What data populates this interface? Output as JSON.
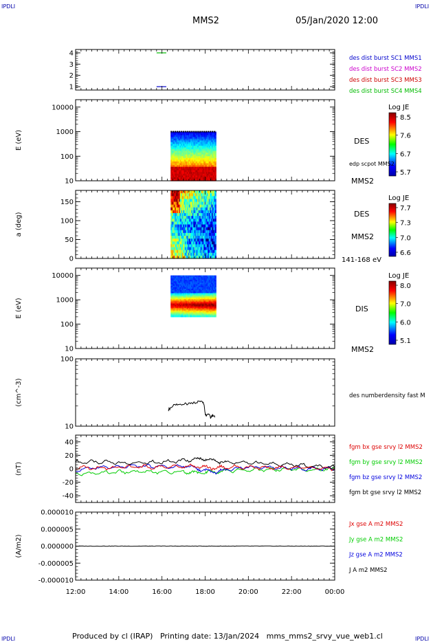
{
  "header": {
    "corner_tl": "IPDLI",
    "corner_tr": "IPDLI",
    "spacecraft": "MMS2",
    "datetime": "05/Jan/2020 12:00"
  },
  "footer": {
    "text": "Produced by cl (IRAP)   Printing date: 13/Jan/2024   mms_mms2_srvy_vue_web1.cl",
    "corner_bl": "IPDLI",
    "corner_br": "IPDLI"
  },
  "colors": {
    "mms1": "#0000cc",
    "mms2": "#cc00cc",
    "mms3": "#cc0000",
    "mms4": "#00bb00",
    "bx": "#dd0000",
    "by": "#00cc00",
    "bz": "#0000dd",
    "bt": "#000000"
  },
  "chart_data": {
    "type": "multi-panel",
    "x_axis": {
      "ticks": [
        "12:00",
        "14:00",
        "16:00",
        "18:00",
        "20:00",
        "22:00",
        "00:00"
      ],
      "range_hours": [
        12,
        24
      ]
    },
    "panels": [
      {
        "id": "burst",
        "type": "line",
        "ylabel": "",
        "yticks": [
          "1",
          "2",
          "3",
          "4"
        ],
        "ylim": [
          0.7,
          4.3
        ],
        "labels": [
          {
            "text": "des dist burst SC1 MMS1",
            "color": "#0000cc"
          },
          {
            "text": "des dist burst SC2 MMS2",
            "color": "#cc00cc"
          },
          {
            "text": "des dist burst SC3 MMS3",
            "color": "#cc0000"
          },
          {
            "text": "des dist burst SC4 MMS4",
            "color": "#00bb00"
          }
        ],
        "segments": [
          {
            "sc": 1,
            "y": 1,
            "x_start": 15.75,
            "x_end": 16.2,
            "color": "#0000cc"
          },
          {
            "sc": 4,
            "y": 4,
            "x_start": 15.75,
            "x_end": 16.2,
            "color": "#00bb00"
          }
        ]
      },
      {
        "id": "des_energy",
        "type": "heatmap",
        "ylabel": "E (eV)",
        "yscale": "log",
        "yticks": [
          "10",
          "100",
          "1000",
          "10000"
        ],
        "ylim": [
          10,
          20000
        ],
        "x_start": 16.4,
        "x_end": 18.5,
        "y_range": [
          10,
          1000
        ],
        "label1": "DES",
        "label2": "edp scpot MMS2",
        "label3": "MMS2",
        "colorbar": {
          "title": "Log JE",
          "ticks": [
            "8.5",
            "7.6",
            "6.7",
            "5.7"
          ],
          "range": [
            5.7,
            8.5
          ]
        }
      },
      {
        "id": "des_pitch",
        "type": "heatmap",
        "ylabel": "a (deg)",
        "yscale": "linear",
        "yticks": [
          "0",
          "50",
          "100",
          "150"
        ],
        "ylim": [
          0,
          180
        ],
        "x_start": 16.4,
        "x_end": 18.5,
        "label1": "DES",
        "label2": "MMS2",
        "label3": "141-168 eV",
        "colorbar": {
          "title": "Log JE",
          "ticks": [
            "7.7",
            "7.3",
            "7.0",
            "6.6"
          ],
          "range": [
            6.6,
            7.7
          ]
        }
      },
      {
        "id": "dis_energy",
        "type": "heatmap",
        "ylabel": "E (eV)",
        "yscale": "log",
        "yticks": [
          "10",
          "100",
          "1000",
          "10000"
        ],
        "ylim": [
          10,
          20000
        ],
        "x_start": 16.4,
        "x_end": 18.5,
        "y_range": [
          200,
          10000
        ],
        "label1": "DIS",
        "label2": "MMS2",
        "colorbar": {
          "title": "Log JE",
          "ticks": [
            "8.0",
            "7.0",
            "6.0",
            "5.1"
          ],
          "range": [
            5.1,
            8.0
          ]
        }
      },
      {
        "id": "density",
        "type": "line",
        "ylabel": "(cm^-3)",
        "yscale": "log",
        "yticks": [
          "10",
          "100"
        ],
        "ylim": [
          10,
          100
        ],
        "label": "des numberdensity fast M",
        "series": [
          {
            "name": "des numberdensity fast M",
            "color": "#000000",
            "x": [
              16.3,
              16.45,
              16.6,
              16.8,
              17.0,
              17.2,
              17.4,
              17.55,
              17.75,
              17.85,
              17.95,
              18.0,
              18.05,
              18.15,
              18.25,
              18.35,
              18.45
            ],
            "y": [
              17.5,
              19.5,
              20.5,
              20.8,
              21.5,
              21.0,
              22.0,
              22.5,
              23.5,
              24.5,
              21.0,
              15.5,
              14.5,
              15.5,
              13.5,
              14.5,
              13.5
            ]
          }
        ]
      },
      {
        "id": "bfield",
        "type": "line",
        "ylabel": "(nT)",
        "yticks": [
          "-40",
          "-20",
          "0",
          "20",
          "40"
        ],
        "ylim": [
          -50,
          50
        ],
        "labels": [
          {
            "text": "fgm bx gse srvy l2 MMS2",
            "color": "#dd0000"
          },
          {
            "text": "fgm by gse srvy l2 MMS2",
            "color": "#00cc00"
          },
          {
            "text": "fgm bz gse srvy l2 MMS2",
            "color": "#0000dd"
          },
          {
            "text": "fgm bt gse srvy l2 MMS2",
            "color": "#000000"
          }
        ],
        "series": [
          {
            "name": "fgm bt gse srvy l2 MMS2",
            "color": "#000000",
            "x": [
              12,
              13,
              14,
              15,
              16,
              17,
              17.5,
              18,
              18.5,
              19,
              20,
              21,
              22,
              23,
              24
            ],
            "y": [
              10,
              10,
              9,
              9,
              10,
              12,
              14,
              15,
              11,
              10,
              9,
              7,
              6,
              4,
              2
            ]
          },
          {
            "name": "fgm by gse srvy l2 MMS2",
            "color": "#00cc00",
            "x": [
              12,
              13,
              14,
              15,
              16,
              17,
              17.5,
              18,
              18.5,
              19,
              20,
              21,
              22,
              23,
              24
            ],
            "y": [
              -8,
              -6,
              -5,
              -4,
              -5,
              -4,
              -6,
              -6,
              -4,
              -3,
              -2,
              -1,
              -1,
              -2,
              0
            ]
          },
          {
            "name": "fgm bz gse srvy l2 MMS2",
            "color": "#0000dd",
            "x": [
              12,
              13,
              14,
              15,
              16,
              17,
              17.5,
              18,
              18.5,
              19,
              20,
              21,
              22,
              23,
              24
            ],
            "y": [
              -2,
              2,
              3,
              4,
              3,
              4,
              2,
              -3,
              -5,
              -1,
              2,
              2,
              1,
              0,
              0
            ]
          },
          {
            "name": "fgm bx gse srvy l2 MMS2",
            "color": "#dd0000",
            "x": [
              12,
              13,
              14,
              15,
              16,
              17,
              17.5,
              18,
              18.5,
              19,
              20,
              21,
              22,
              23,
              24
            ],
            "y": [
              2,
              1,
              2,
              3,
              2,
              3,
              4,
              2,
              1,
              3,
              2,
              1,
              2,
              1,
              0
            ]
          }
        ]
      },
      {
        "id": "current",
        "type": "line",
        "ylabel": "(A/m2)",
        "yticks": [
          "-0.000010",
          "-0.000005",
          "0.000000",
          "0.000005",
          "0.000010"
        ],
        "ylim": [
          -1e-05,
          1e-05
        ],
        "labels": [
          {
            "text": "Jx gse A m2 MMS2",
            "color": "#dd0000"
          },
          {
            "text": "Jy gse A m2 MMS2",
            "color": "#00cc00"
          },
          {
            "text": "Jz gse A m2 MMS2",
            "color": "#0000dd"
          },
          {
            "text": "J A m2 MMS2",
            "color": "#000000"
          }
        ],
        "series": [
          {
            "name": "J A m2 MMS2",
            "color": "#000000",
            "x": [
              12,
              24
            ],
            "y": [
              0,
              0
            ]
          }
        ]
      }
    ]
  }
}
